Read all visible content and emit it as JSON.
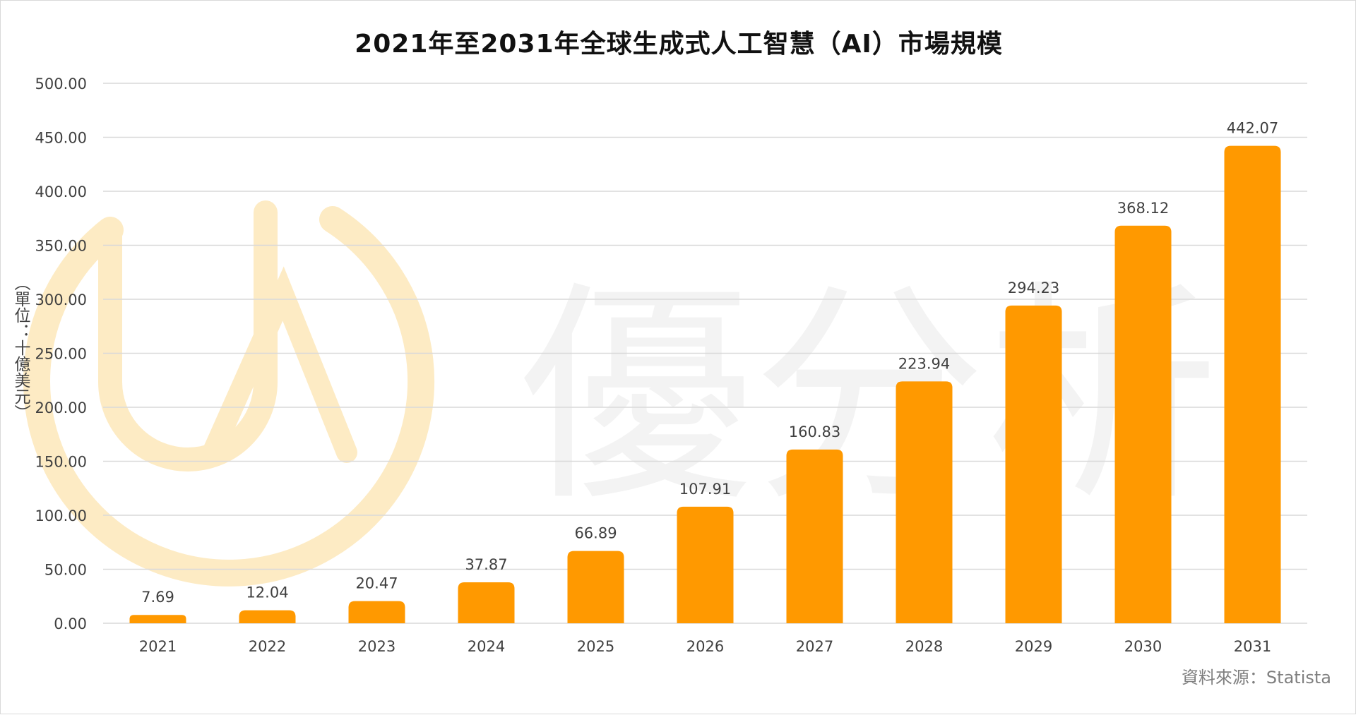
{
  "colors": {
    "bar": "#FF9900",
    "grid": "#d9d9d9",
    "text": "#404040",
    "watermark_logo": "#fdebc4",
    "watermark_text": "#f3f3f3"
  },
  "watermark": {
    "text": "優分析"
  },
  "chart_data": {
    "type": "bar",
    "title": "2021年至2031年全球生成式人工智慧（AI）市場規模",
    "ylabel": "（單位：十億美元）",
    "xlabel": "",
    "source": "資料來源：Statista",
    "categories": [
      "2021",
      "2022",
      "2023",
      "2024",
      "2025",
      "2026",
      "2027",
      "2028",
      "2029",
      "2030",
      "2031"
    ],
    "values": [
      7.69,
      12.04,
      20.47,
      37.87,
      66.89,
      107.91,
      160.83,
      223.94,
      294.23,
      368.12,
      442.07
    ],
    "value_labels": [
      "7.69",
      "12.04",
      "20.47",
      "37.87",
      "66.89",
      "107.91",
      "160.83",
      "223.94",
      "294.23",
      "368.12",
      "442.07"
    ],
    "yticks": [
      "0.00",
      "50.00",
      "100.00",
      "150.00",
      "200.00",
      "250.00",
      "300.00",
      "350.00",
      "400.00",
      "450.00",
      "500.00"
    ],
    "ylim": [
      0,
      500
    ],
    "grid": true,
    "legend": "none"
  }
}
